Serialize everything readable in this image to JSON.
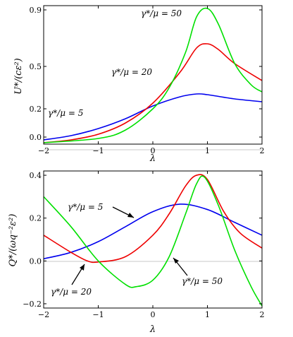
{
  "chart_data": [
    {
      "type": "line",
      "panel": "top",
      "xlabel": "λ",
      "ylabel": "U*/(cε²)",
      "xlim": [
        -2,
        2
      ],
      "ylim": [
        -0.05,
        0.93
      ],
      "xticks": [
        -2,
        -1,
        0,
        1,
        2
      ],
      "xtick_labels": [
        "−2",
        "−1",
        "0",
        "1",
        "2"
      ],
      "yticks": [
        0.0,
        0.2,
        0.5,
        0.9
      ],
      "ytick_labels": [
        "0.0",
        "0.2",
        "0.5",
        "0.9"
      ],
      "series": [
        {
          "name": "γ*/μ = 5",
          "color": "#0000ee",
          "x": [
            -2.0,
            -1.5,
            -1.0,
            -0.5,
            0.0,
            0.5,
            0.8,
            1.0,
            1.5,
            2.0
          ],
          "y": [
            -0.02,
            0.01,
            0.06,
            0.13,
            0.22,
            0.285,
            0.305,
            0.3,
            0.27,
            0.25
          ]
        },
        {
          "name": "γ*/μ = 20",
          "color": "#ee0000",
          "x": [
            -2.0,
            -1.5,
            -1.0,
            -0.5,
            0.0,
            0.5,
            0.8,
            1.0,
            1.2,
            1.5,
            2.0
          ],
          "y": [
            -0.04,
            -0.02,
            0.02,
            0.1,
            0.24,
            0.46,
            0.63,
            0.66,
            0.62,
            0.52,
            0.4
          ]
        },
        {
          "name": "γ*/μ = 50",
          "color": "#00e000",
          "x": [
            -2.0,
            -1.0,
            -0.5,
            0.0,
            0.3,
            0.6,
            0.8,
            1.0,
            1.2,
            1.5,
            1.8,
            2.0
          ],
          "y": [
            -0.04,
            -0.01,
            0.05,
            0.2,
            0.35,
            0.6,
            0.85,
            0.91,
            0.8,
            0.52,
            0.37,
            0.32
          ]
        }
      ],
      "annotations": [
        {
          "text": "γ*/μ = 50",
          "x": -0.25,
          "y": 0.83
        },
        {
          "text": "γ*/μ = 20",
          "x": -0.6,
          "y": 0.35
        },
        {
          "text": "γ*/μ = 5",
          "x": -1.8,
          "y": 0.09
        }
      ]
    },
    {
      "type": "line",
      "panel": "bottom",
      "xlabel": "λ",
      "ylabel": "Q*/(ωq⁻²ε²)",
      "xlim": [
        -2,
        2
      ],
      "ylim": [
        -0.22,
        0.42
      ],
      "xticks": [
        -2,
        -1,
        0,
        1,
        2
      ],
      "xtick_labels": [
        "−2",
        "−1",
        "0",
        "1",
        "2"
      ],
      "yticks": [
        -0.2,
        0.0,
        0.2,
        0.4
      ],
      "ytick_labels": [
        "−0.2",
        "0.0",
        "0.2",
        "0.4"
      ],
      "series": [
        {
          "name": "γ*/μ = 5",
          "color": "#0000ee",
          "x": [
            -2.0,
            -1.5,
            -1.0,
            -0.5,
            0.0,
            0.5,
            1.0,
            1.5,
            2.0
          ],
          "y": [
            0.01,
            0.04,
            0.09,
            0.16,
            0.23,
            0.265,
            0.24,
            0.18,
            0.12
          ]
        },
        {
          "name": "γ*/μ = 20",
          "color": "#ee0000",
          "x": [
            -2.0,
            -1.5,
            -1.2,
            -1.0,
            -0.5,
            0.0,
            0.3,
            0.6,
            0.8,
            1.0,
            1.3,
            1.6,
            2.0
          ],
          "y": [
            0.12,
            0.04,
            0.0,
            -0.005,
            0.02,
            0.12,
            0.22,
            0.35,
            0.4,
            0.38,
            0.23,
            0.13,
            0.06
          ]
        },
        {
          "name": "γ*/μ = 50",
          "color": "#00e000",
          "x": [
            -2.0,
            -1.5,
            -1.0,
            -0.5,
            -0.3,
            0.0,
            0.3,
            0.6,
            0.8,
            0.95,
            1.2,
            1.5,
            1.8,
            2.0
          ],
          "y": [
            0.3,
            0.16,
            0.0,
            -0.11,
            -0.12,
            -0.09,
            0.02,
            0.22,
            0.36,
            0.39,
            0.26,
            0.05,
            -0.12,
            -0.21
          ]
        }
      ],
      "annotations": [
        {
          "text": "γ*/μ = 5",
          "x": -1.5,
          "y": 0.26
        },
        {
          "text": "γ*/μ = 20",
          "x": -1.7,
          "y": -0.15
        },
        {
          "text": "γ*/μ = 50",
          "x": 0.65,
          "y": -0.08
        }
      ]
    }
  ]
}
